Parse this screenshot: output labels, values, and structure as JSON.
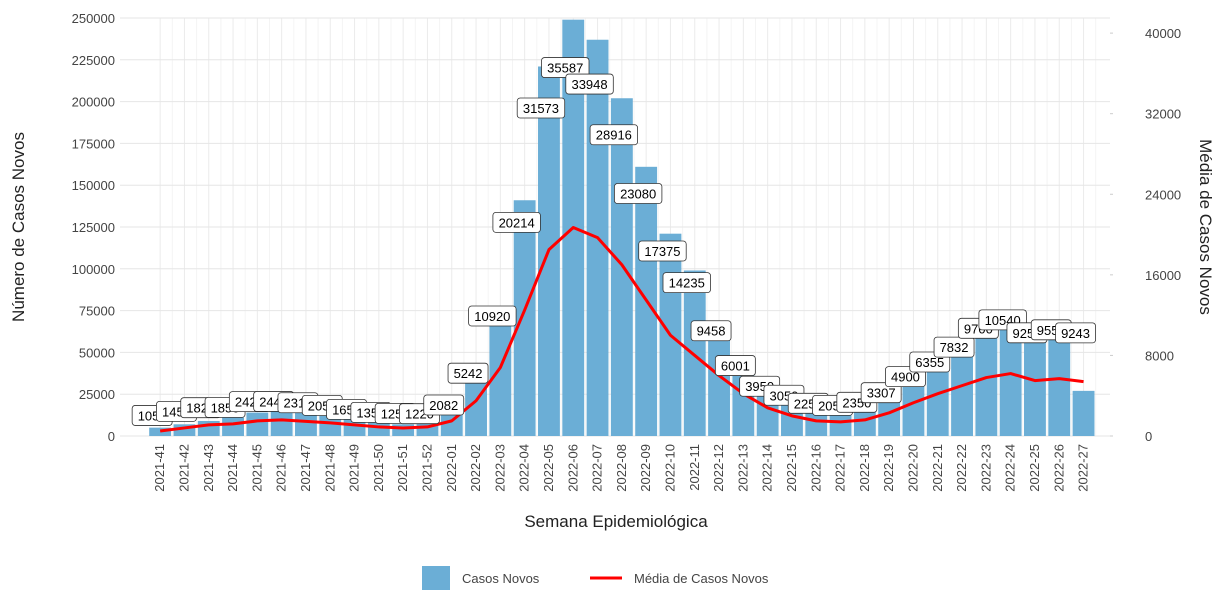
{
  "chart_data": {
    "type": "bar-line",
    "x_label": "Semana Epidemiológica",
    "y_label": "Número de Casos Novos",
    "y2_label": "Média de Casos Novos",
    "categories": [
      "2021-41",
      "2021-42",
      "2021-43",
      "2021-44",
      "2021-45",
      "2021-46",
      "2021-47",
      "2021-48",
      "2021-49",
      "2021-50",
      "2021-51",
      "2021-52",
      "2022-01",
      "2022-02",
      "2022-03",
      "2022-04",
      "2022-05",
      "2022-06",
      "2022-07",
      "2022-08",
      "2022-09",
      "2022-10",
      "2022-11",
      "2022-12",
      "2022-13",
      "2022-14",
      "2022-15",
      "2022-16",
      "2022-17",
      "2022-18",
      "2022-19",
      "2022-20",
      "2022-21",
      "2022-22",
      "2022-23",
      "2022-24",
      "2022-25",
      "2022-26",
      "2022-27"
    ],
    "series": [
      {
        "name": "Casos Novos",
        "color": "#6baed6",
        "values": [
          5000,
          7000,
          9000,
          11000,
          14000,
          15000,
          14000,
          12000,
          10000,
          8000,
          7000,
          9000,
          14500,
          36000,
          76000,
          141000,
          221000,
          249000,
          237000,
          202000,
          161000,
          121000,
          99000,
          66000,
          42000,
          27000,
          20000,
          15000,
          14000,
          16000,
          23000,
          34000,
          44000,
          55000,
          68000,
          74000,
          64000,
          67000,
          27000
        ]
      },
      {
        "name": "Média de Casos Novos",
        "color": "#ff0000",
        "axis": "y2",
        "values": [
          500,
          800,
          1100,
          1200,
          1500,
          1600,
          1450,
          1300,
          1100,
          900,
          800,
          900,
          1500,
          3500,
          6800,
          12500,
          18500,
          20700,
          19700,
          17000,
          13500,
          10000,
          8000,
          6000,
          4200,
          2800,
          2000,
          1500,
          1400,
          1600,
          2300,
          3300,
          4200,
          5000,
          5800,
          6200,
          5500,
          5700,
          5400
        ]
      }
    ],
    "point_labels": [
      1050,
      1450,
      1820,
      1850,
      2420,
      2440,
      2310,
      2050,
      1650,
      1350,
      1250,
      1220,
      2082,
      5242,
      10920,
      20214,
      31573,
      35587,
      33948,
      28916,
      23080,
      17375,
      14235,
      9458,
      6001,
      3950,
      3050,
      2250,
      2050,
      2350,
      3307,
      4900,
      6355,
      7832,
      9700,
      10540,
      9250,
      9550,
      9243
    ],
    "ylim": [
      0,
      250000
    ],
    "yticks": [
      0,
      25000,
      50000,
      75000,
      100000,
      125000,
      150000,
      175000,
      200000,
      225000,
      250000
    ],
    "y2lim": [
      0,
      41500
    ],
    "y2ticks": [
      0,
      8000,
      16000,
      24000,
      32000,
      40000
    ],
    "grid": true
  }
}
